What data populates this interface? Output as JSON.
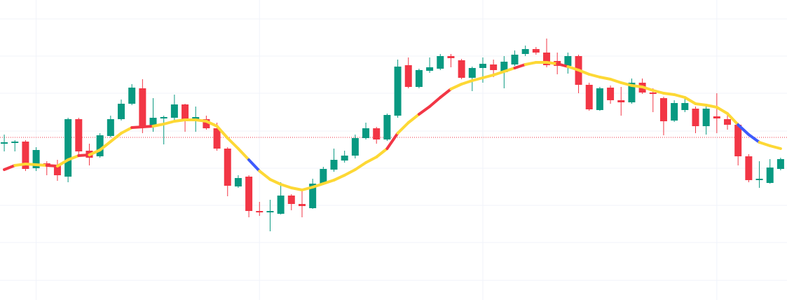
{
  "chart_data": {
    "type": "candlestick",
    "up_color": "#089981",
    "down_color": "#f23645",
    "xlim": [
      -0.4,
      73.6
    ],
    "ylim": [
      0,
      428
    ],
    "xticks": [
      3,
      24,
      45,
      67
    ],
    "yticks": [
      28,
      82,
      135,
      188,
      241,
      295,
      348,
      401
    ],
    "grid": true,
    "price_line": {
      "value": 232,
      "color": "#f23645"
    },
    "candles": {
      "open": [
        223,
        224,
        226,
        188,
        195,
        192,
        176,
        258,
        213,
        205,
        234,
        258,
        280,
        302,
        248,
        259,
        260,
        279,
        256,
        258,
        245,
        216,
        162,
        176,
        127,
        125,
        123,
        149,
        137,
        131,
        166,
        186,
        199,
        206,
        231,
        245,
        229,
        263,
        335,
        304,
        327,
        330,
        348,
        342,
        317,
        331,
        336,
        325,
        336,
        351,
        358,
        353,
        341,
        334,
        348,
        307,
        271,
        303,
        285,
        282,
        310,
        296,
        288,
        256,
        271,
        273,
        248,
        262,
        258,
        250,
        205,
        171,
        167,
        187
      ],
      "high": [
        236,
        228,
        228,
        218,
        198,
        200,
        260,
        260,
        223,
        238,
        263,
        286,
        308,
        315,
        288,
        263,
        293,
        280,
        276,
        263,
        253,
        218,
        178,
        178,
        140,
        143,
        168,
        151,
        158,
        173,
        190,
        216,
        213,
        236,
        253,
        247,
        266,
        343,
        346,
        330,
        346,
        351,
        351,
        344,
        333,
        346,
        343,
        348,
        356,
        363,
        361,
        373,
        353,
        353,
        350,
        310,
        304,
        306,
        304,
        316,
        316,
        302,
        290,
        285,
        288,
        276,
        276,
        295,
        268,
        253,
        208,
        198,
        201,
        203
      ],
      "low": [
        212,
        212,
        184,
        184,
        178,
        170,
        168,
        206,
        192,
        203,
        232,
        256,
        278,
        238,
        240,
        222,
        256,
        240,
        240,
        243,
        213,
        148,
        160,
        118,
        120,
        98,
        122,
        128,
        118,
        130,
        164,
        183,
        196,
        202,
        229,
        223,
        227,
        260,
        302,
        302,
        324,
        328,
        332,
        315,
        298,
        310,
        318,
        302,
        334,
        348,
        350,
        332,
        322,
        323,
        295,
        270,
        270,
        280,
        263,
        280,
        294,
        268,
        235,
        254,
        268,
        238,
        236,
        238,
        243,
        192,
        168,
        160,
        166,
        185
      ],
      "close": [
        225,
        226,
        187,
        214,
        192,
        178,
        258,
        212,
        203,
        235,
        258,
        280,
        303,
        248,
        260,
        261,
        279,
        256,
        261,
        245,
        216,
        163,
        174,
        127,
        125,
        127,
        149,
        137,
        134,
        166,
        187,
        200,
        206,
        231,
        245,
        229,
        264,
        333,
        304,
        328,
        332,
        348,
        345,
        317,
        331,
        337,
        328,
        340,
        350,
        358,
        353,
        335,
        334,
        348,
        307,
        272,
        302,
        285,
        282,
        310,
        296,
        294,
        255,
        281,
        281,
        248,
        273,
        259,
        250,
        205,
        171,
        173,
        189,
        201
      ]
    },
    "moving_average": {
      "values": [
        186,
        192,
        194,
        193,
        192,
        191,
        200,
        206,
        207,
        214,
        226,
        238,
        246,
        247,
        248,
        251,
        255,
        257,
        257,
        255,
        248,
        231,
        216,
        200,
        184,
        172,
        165,
        160,
        157,
        161,
        166,
        171,
        178,
        186,
        196,
        204,
        216,
        238,
        253,
        265,
        276,
        289,
        301,
        308,
        313,
        317,
        321,
        326,
        331,
        336,
        339,
        339,
        337,
        333,
        328,
        322,
        318,
        315,
        310,
        306,
        304,
        299,
        295,
        293,
        289,
        280,
        278,
        275,
        266,
        250,
        236,
        225,
        220,
        216
      ],
      "segment_colors": [
        "#f23645",
        "#fdd835",
        "#fdd835",
        "#fdd835",
        "#f23645",
        "#fdd835",
        "#fdd835",
        "#f23645",
        "#fdd835",
        "#fdd835",
        "#fdd835",
        "#fdd835",
        "#f23645",
        "#f23645",
        "#fdd835",
        "#fdd835",
        "#fdd835",
        "#fdd835",
        "#fdd835",
        "#fdd835",
        "#fdd835",
        "#fdd835",
        "#fdd835",
        "#3d5afe",
        "#fdd835",
        "#fdd835",
        "#fdd835",
        "#fdd835",
        "#fdd835",
        "#fdd835",
        "#fdd835",
        "#fdd835",
        "#fdd835",
        "#fdd835",
        "#fdd835",
        "#fdd835",
        "#f23645",
        "#fdd835",
        "#fdd835",
        "#f23645",
        "#f23645",
        "#f23645",
        "#fdd835",
        "#fdd835",
        "#fdd835",
        "#fdd835",
        "#fdd835",
        "#fdd835",
        "#f23645",
        "#fdd835",
        "#fdd835",
        "#fdd835",
        "#f23645",
        "#fdd835",
        "#fdd835",
        "#fdd835",
        "#fdd835",
        "#fdd835",
        "#fdd835",
        "#fdd835",
        "#fdd835",
        "#fdd835",
        "#fdd835",
        "#fdd835",
        "#fdd835",
        "#fdd835",
        "#fdd835",
        "#fdd835",
        "#fdd835",
        "#3d5afe",
        "#3d5afe",
        "#fdd835",
        "#fdd835"
      ]
    }
  }
}
